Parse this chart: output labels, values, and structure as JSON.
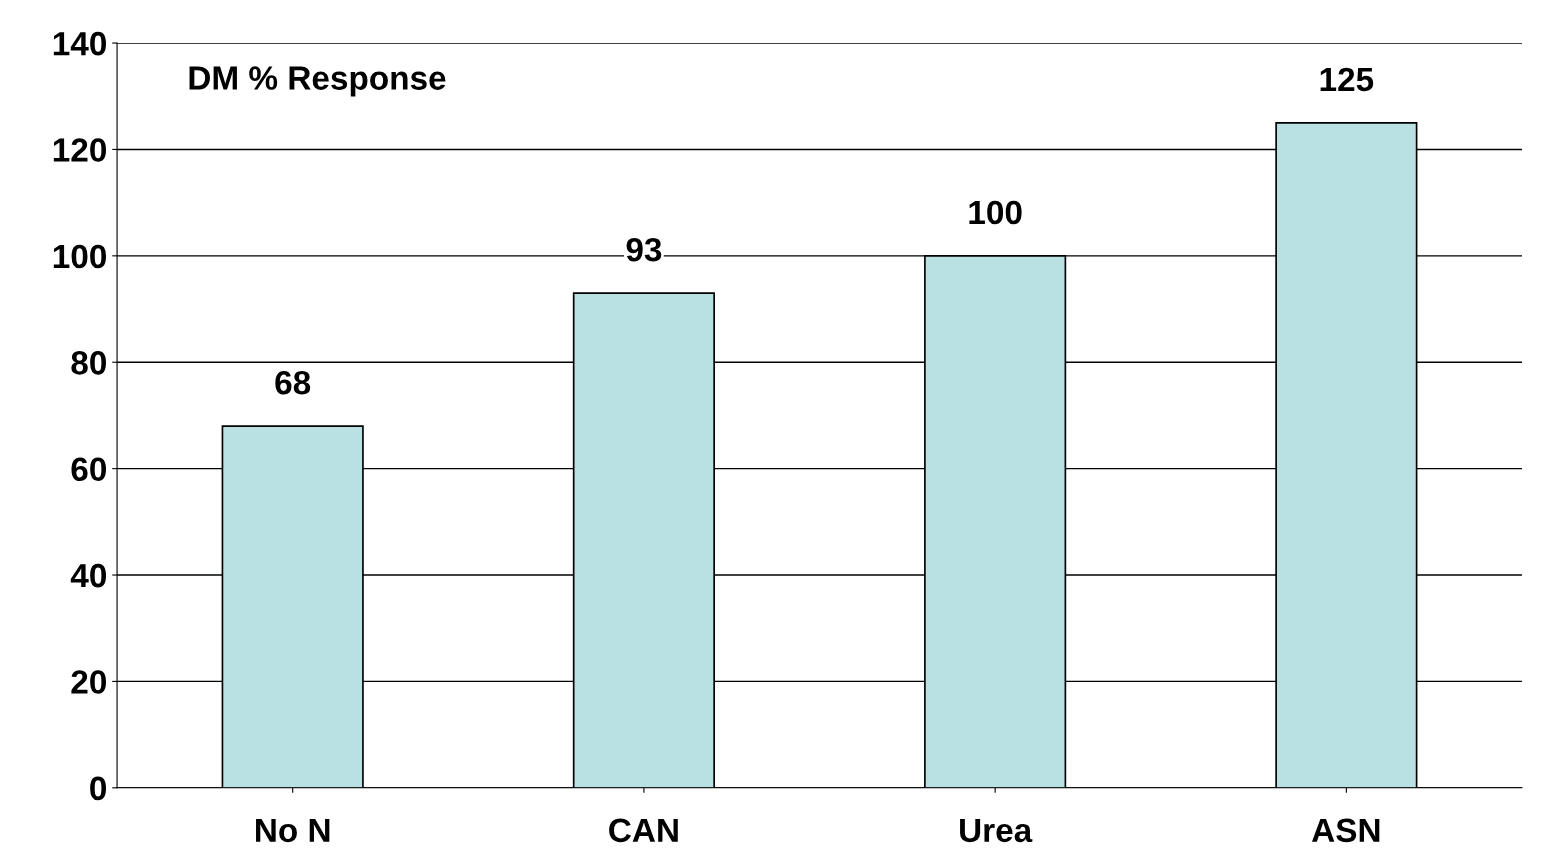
{
  "chart_data": {
    "type": "bar",
    "title": "DM % Response",
    "categories": [
      "No N",
      "CAN",
      "Urea",
      "ASN"
    ],
    "values": [
      68,
      93,
      100,
      125
    ],
    "color": "#b9e0e3",
    "data_labels": true,
    "ylim": [
      0,
      140
    ],
    "yticks": [
      0,
      20,
      40,
      60,
      80,
      100,
      120,
      140
    ],
    "grid": "y"
  }
}
